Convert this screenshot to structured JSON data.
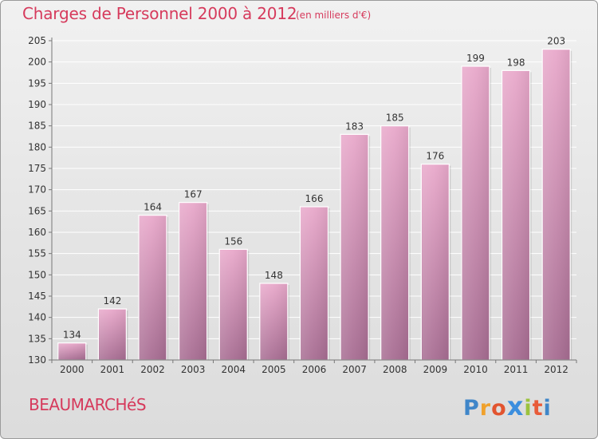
{
  "header": {
    "title": "Charges de Personnel 2000 à 2012",
    "subtitle": "(en milliers d'€)"
  },
  "footer": {
    "commune": "BEAUMARCHéS",
    "logo": "Proxiti"
  },
  "colors": {
    "accent": "#d63a5c",
    "bar_top": "#e9a9cb",
    "bar_bottom": "#a76d92"
  },
  "chart_data": {
    "type": "bar",
    "title": "Charges de Personnel 2000 à 2012",
    "subtitle": "(en milliers d'€)",
    "categories": [
      "2000",
      "2001",
      "2002",
      "2003",
      "2004",
      "2005",
      "2006",
      "2007",
      "2008",
      "2009",
      "2010",
      "2011",
      "2012"
    ],
    "values": [
      134,
      142,
      164,
      167,
      156,
      148,
      166,
      183,
      185,
      176,
      199,
      198,
      203
    ],
    "ylim": [
      130,
      205
    ],
    "yticks": [
      130,
      135,
      140,
      145,
      150,
      155,
      160,
      165,
      170,
      175,
      180,
      185,
      190,
      195,
      200,
      205
    ],
    "grid": true,
    "data_labels": true
  }
}
